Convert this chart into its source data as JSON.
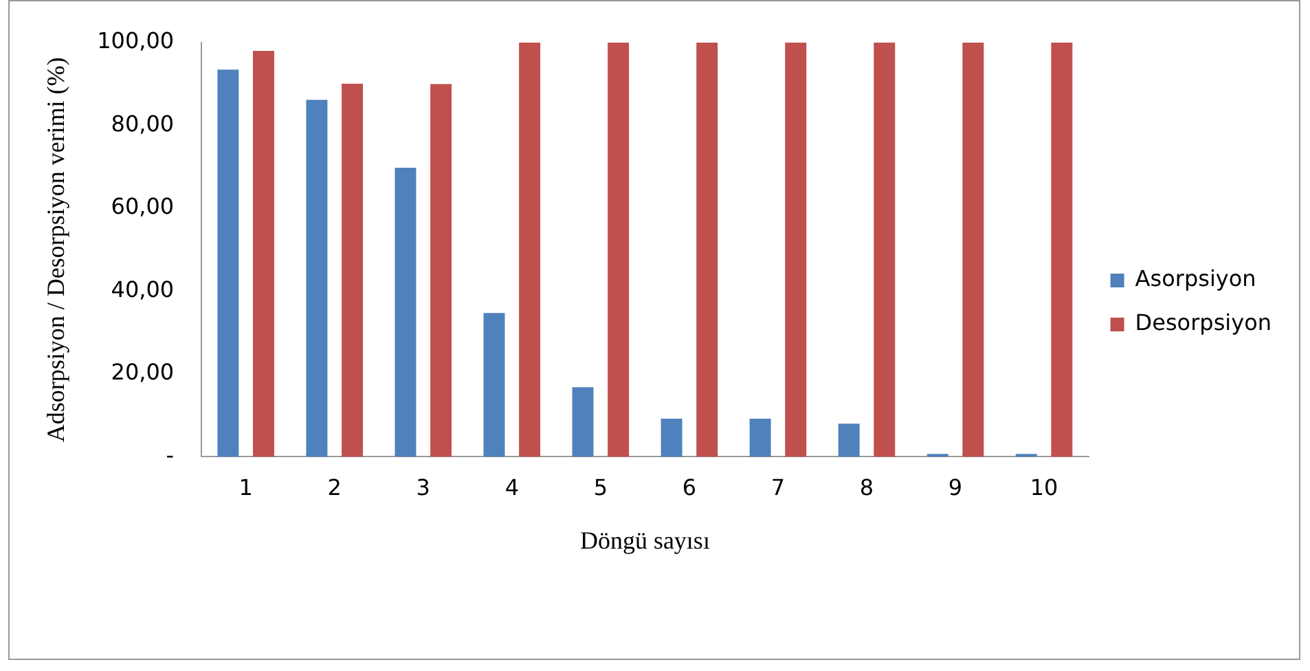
{
  "chart_data": {
    "type": "bar",
    "xlabel": "Döngü sayısı",
    "ylabel": "Adsorpsiyon / Desorpsiyon verimi (%)",
    "categories": [
      "1",
      "2",
      "3",
      "4",
      "5",
      "6",
      "7",
      "8",
      "9",
      "10"
    ],
    "series": [
      {
        "name": "Asorpsiyon",
        "color": "#4f81bd",
        "values": [
          93.5,
          86.2,
          69.8,
          34.7,
          16.8,
          9.2,
          9.2,
          8,
          0.7,
          0.7
        ]
      },
      {
        "name": "Desorpsiyon",
        "color": "#c0504d",
        "values": [
          98,
          90.1,
          90,
          100,
          100,
          100,
          100,
          100,
          100,
          100
        ]
      }
    ],
    "ylim": [
      0,
      100
    ],
    "yticks": [
      {
        "value": 0,
        "label": "-"
      },
      {
        "value": 20,
        "label": "20,00"
      },
      {
        "value": 40,
        "label": "40,00"
      },
      {
        "value": 60,
        "label": "60,00"
      },
      {
        "value": 80,
        "label": "80,00"
      },
      {
        "value": 100,
        "label": "100,00"
      }
    ],
    "grid": false,
    "legend": "right"
  }
}
